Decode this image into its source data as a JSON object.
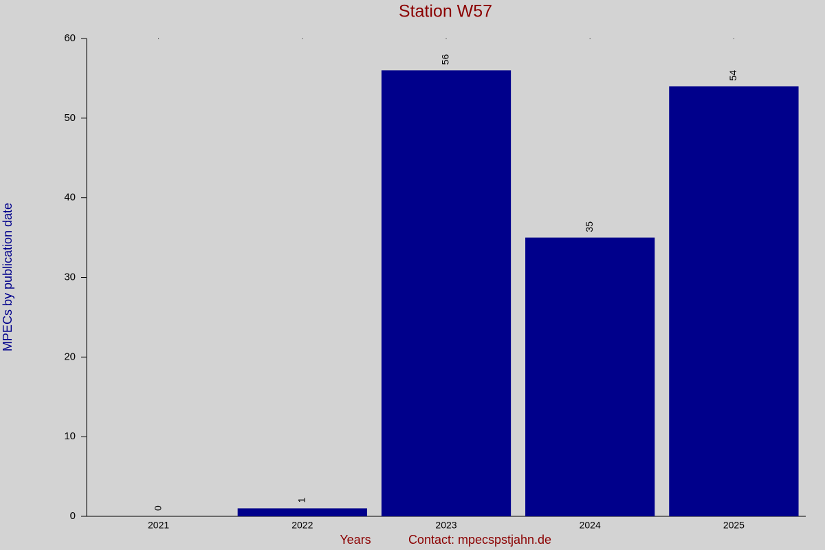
{
  "chart_data": {
    "type": "bar",
    "title": "Station W57",
    "y_label": "MPECs by publication date",
    "x_label": "Years",
    "contact": "Contact: mpecspstjahn.de",
    "categories": [
      "2021",
      "2022",
      "2023",
      "2024",
      "2025"
    ],
    "values": [
      0,
      1,
      56,
      35,
      54
    ],
    "color": "#00008b",
    "ylim": [
      0,
      60
    ],
    "yticks": [
      0,
      10,
      20,
      30,
      40,
      50,
      60
    ],
    "grid": false
  }
}
